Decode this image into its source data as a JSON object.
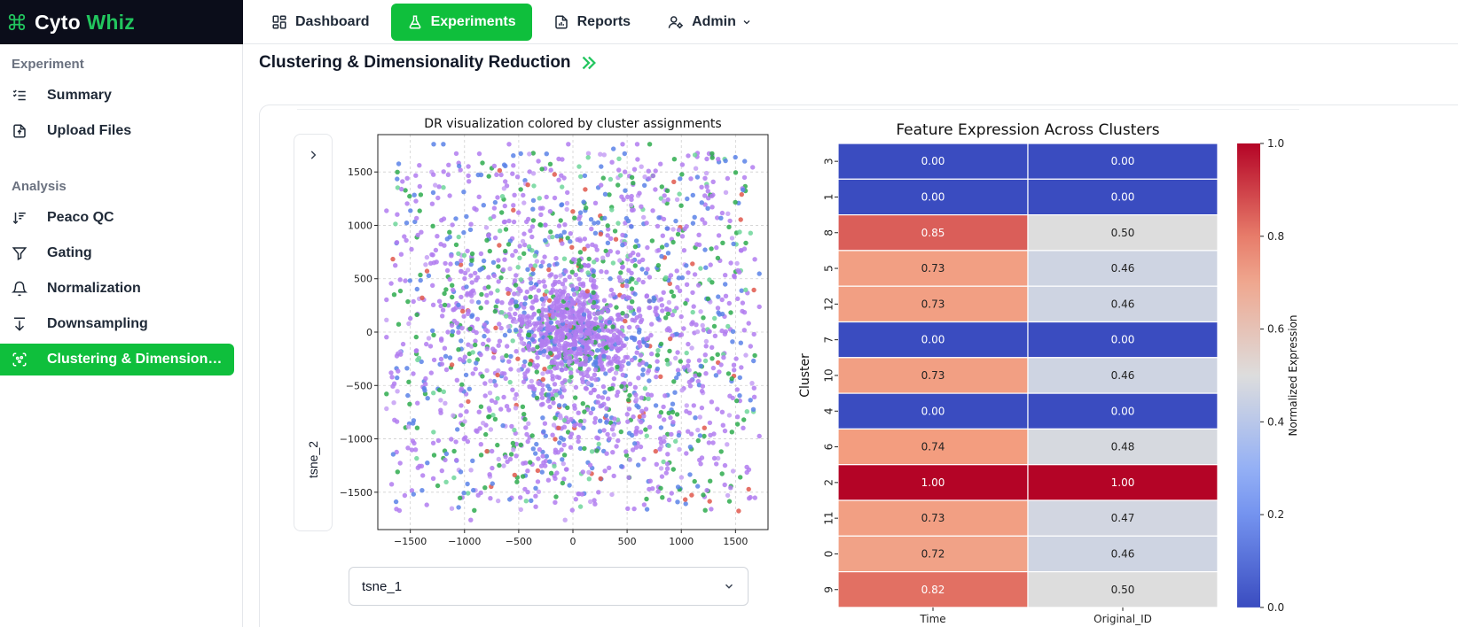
{
  "brand": {
    "name_part1": "Cyto",
    "name_part2": "Whiz",
    "accent_color": "#22c55e",
    "bg_color": "#0b0d1a"
  },
  "nav": {
    "items": [
      {
        "label": "Dashboard",
        "icon": "dashboard-icon",
        "active": false
      },
      {
        "label": "Experiments",
        "icon": "flask-icon",
        "active": true
      },
      {
        "label": "Reports",
        "icon": "report-icon",
        "active": false
      },
      {
        "label": "Admin",
        "icon": "user-cog-icon",
        "active": false,
        "dropdown": true
      }
    ],
    "active_color": "#0fbf3c"
  },
  "sidebar": {
    "sections": [
      {
        "label": "Experiment",
        "items": [
          {
            "label": "Summary",
            "icon": "list-icon",
            "active": false
          },
          {
            "label": "Upload Files",
            "icon": "file-upload-icon",
            "active": false
          }
        ]
      },
      {
        "label": "Analysis",
        "items": [
          {
            "label": "Peaco QC",
            "icon": "sort-icon",
            "active": false
          },
          {
            "label": "Gating",
            "icon": "filter-icon",
            "active": false
          },
          {
            "label": "Normalization",
            "icon": "bell-icon",
            "active": false
          },
          {
            "label": "Downsampling",
            "icon": "arrow-down-icon",
            "active": false
          },
          {
            "label": "Clustering & Dimensiona...",
            "icon": "cluster-icon",
            "active": true
          }
        ]
      }
    ]
  },
  "page": {
    "title": "Clustering & Dimensionality Reduction"
  },
  "controls": {
    "y_axis_label": "tsne_2",
    "x_axis_select": "tsne_1"
  },
  "chart_data": [
    {
      "type": "scatter",
      "title": "DR visualization colored by cluster assignments",
      "xlabel": "",
      "ylabel": "",
      "xlim": [
        -1800,
        1800
      ],
      "ylim": [
        -1850,
        1850
      ],
      "xticks": [
        -1500,
        -1000,
        -500,
        0,
        500,
        1000,
        1500
      ],
      "yticks": [
        -1500,
        -1000,
        -500,
        0,
        500,
        1000,
        1500
      ],
      "grid": true,
      "point_count": 2600,
      "series": [
        {
          "name": "cluster-group-violet",
          "color": "#b27cf0",
          "weight": 0.48
        },
        {
          "name": "cluster-group-blue",
          "color": "#5b83e8",
          "weight": 0.2
        },
        {
          "name": "cluster-group-green",
          "color": "#2eab4e",
          "weight": 0.14
        },
        {
          "name": "cluster-group-lightgreen",
          "color": "#6fd69a",
          "weight": 0.06
        },
        {
          "name": "cluster-group-lavender",
          "color": "#c6a0f5",
          "weight": 0.08
        },
        {
          "name": "cluster-group-red",
          "color": "#e0584c",
          "weight": 0.04
        }
      ]
    },
    {
      "type": "heatmap",
      "title": "Feature Expression Across Clusters",
      "xlabel": "",
      "ylabel": "Cluster",
      "columns": [
        "Time",
        "Original_ID"
      ],
      "rows": [
        "3",
        "1",
        "8",
        "5",
        "12",
        "7",
        "10",
        "4",
        "6",
        "2",
        "11",
        "0",
        "9"
      ],
      "values": [
        [
          0.0,
          0.0
        ],
        [
          0.0,
          0.0
        ],
        [
          0.85,
          0.5
        ],
        [
          0.73,
          0.46
        ],
        [
          0.73,
          0.46
        ],
        [
          0.0,
          0.0
        ],
        [
          0.73,
          0.46
        ],
        [
          0.0,
          0.0
        ],
        [
          0.74,
          0.48
        ],
        [
          1.0,
          1.0
        ],
        [
          0.73,
          0.47
        ],
        [
          0.72,
          0.46
        ],
        [
          0.82,
          0.5
        ]
      ],
      "colorbar": {
        "label": "Normalized Expression",
        "range": [
          0.0,
          1.0
        ],
        "ticks": [
          0.0,
          0.2,
          0.4,
          0.6,
          0.8,
          1.0
        ],
        "colormap": "coolwarm"
      }
    }
  ]
}
